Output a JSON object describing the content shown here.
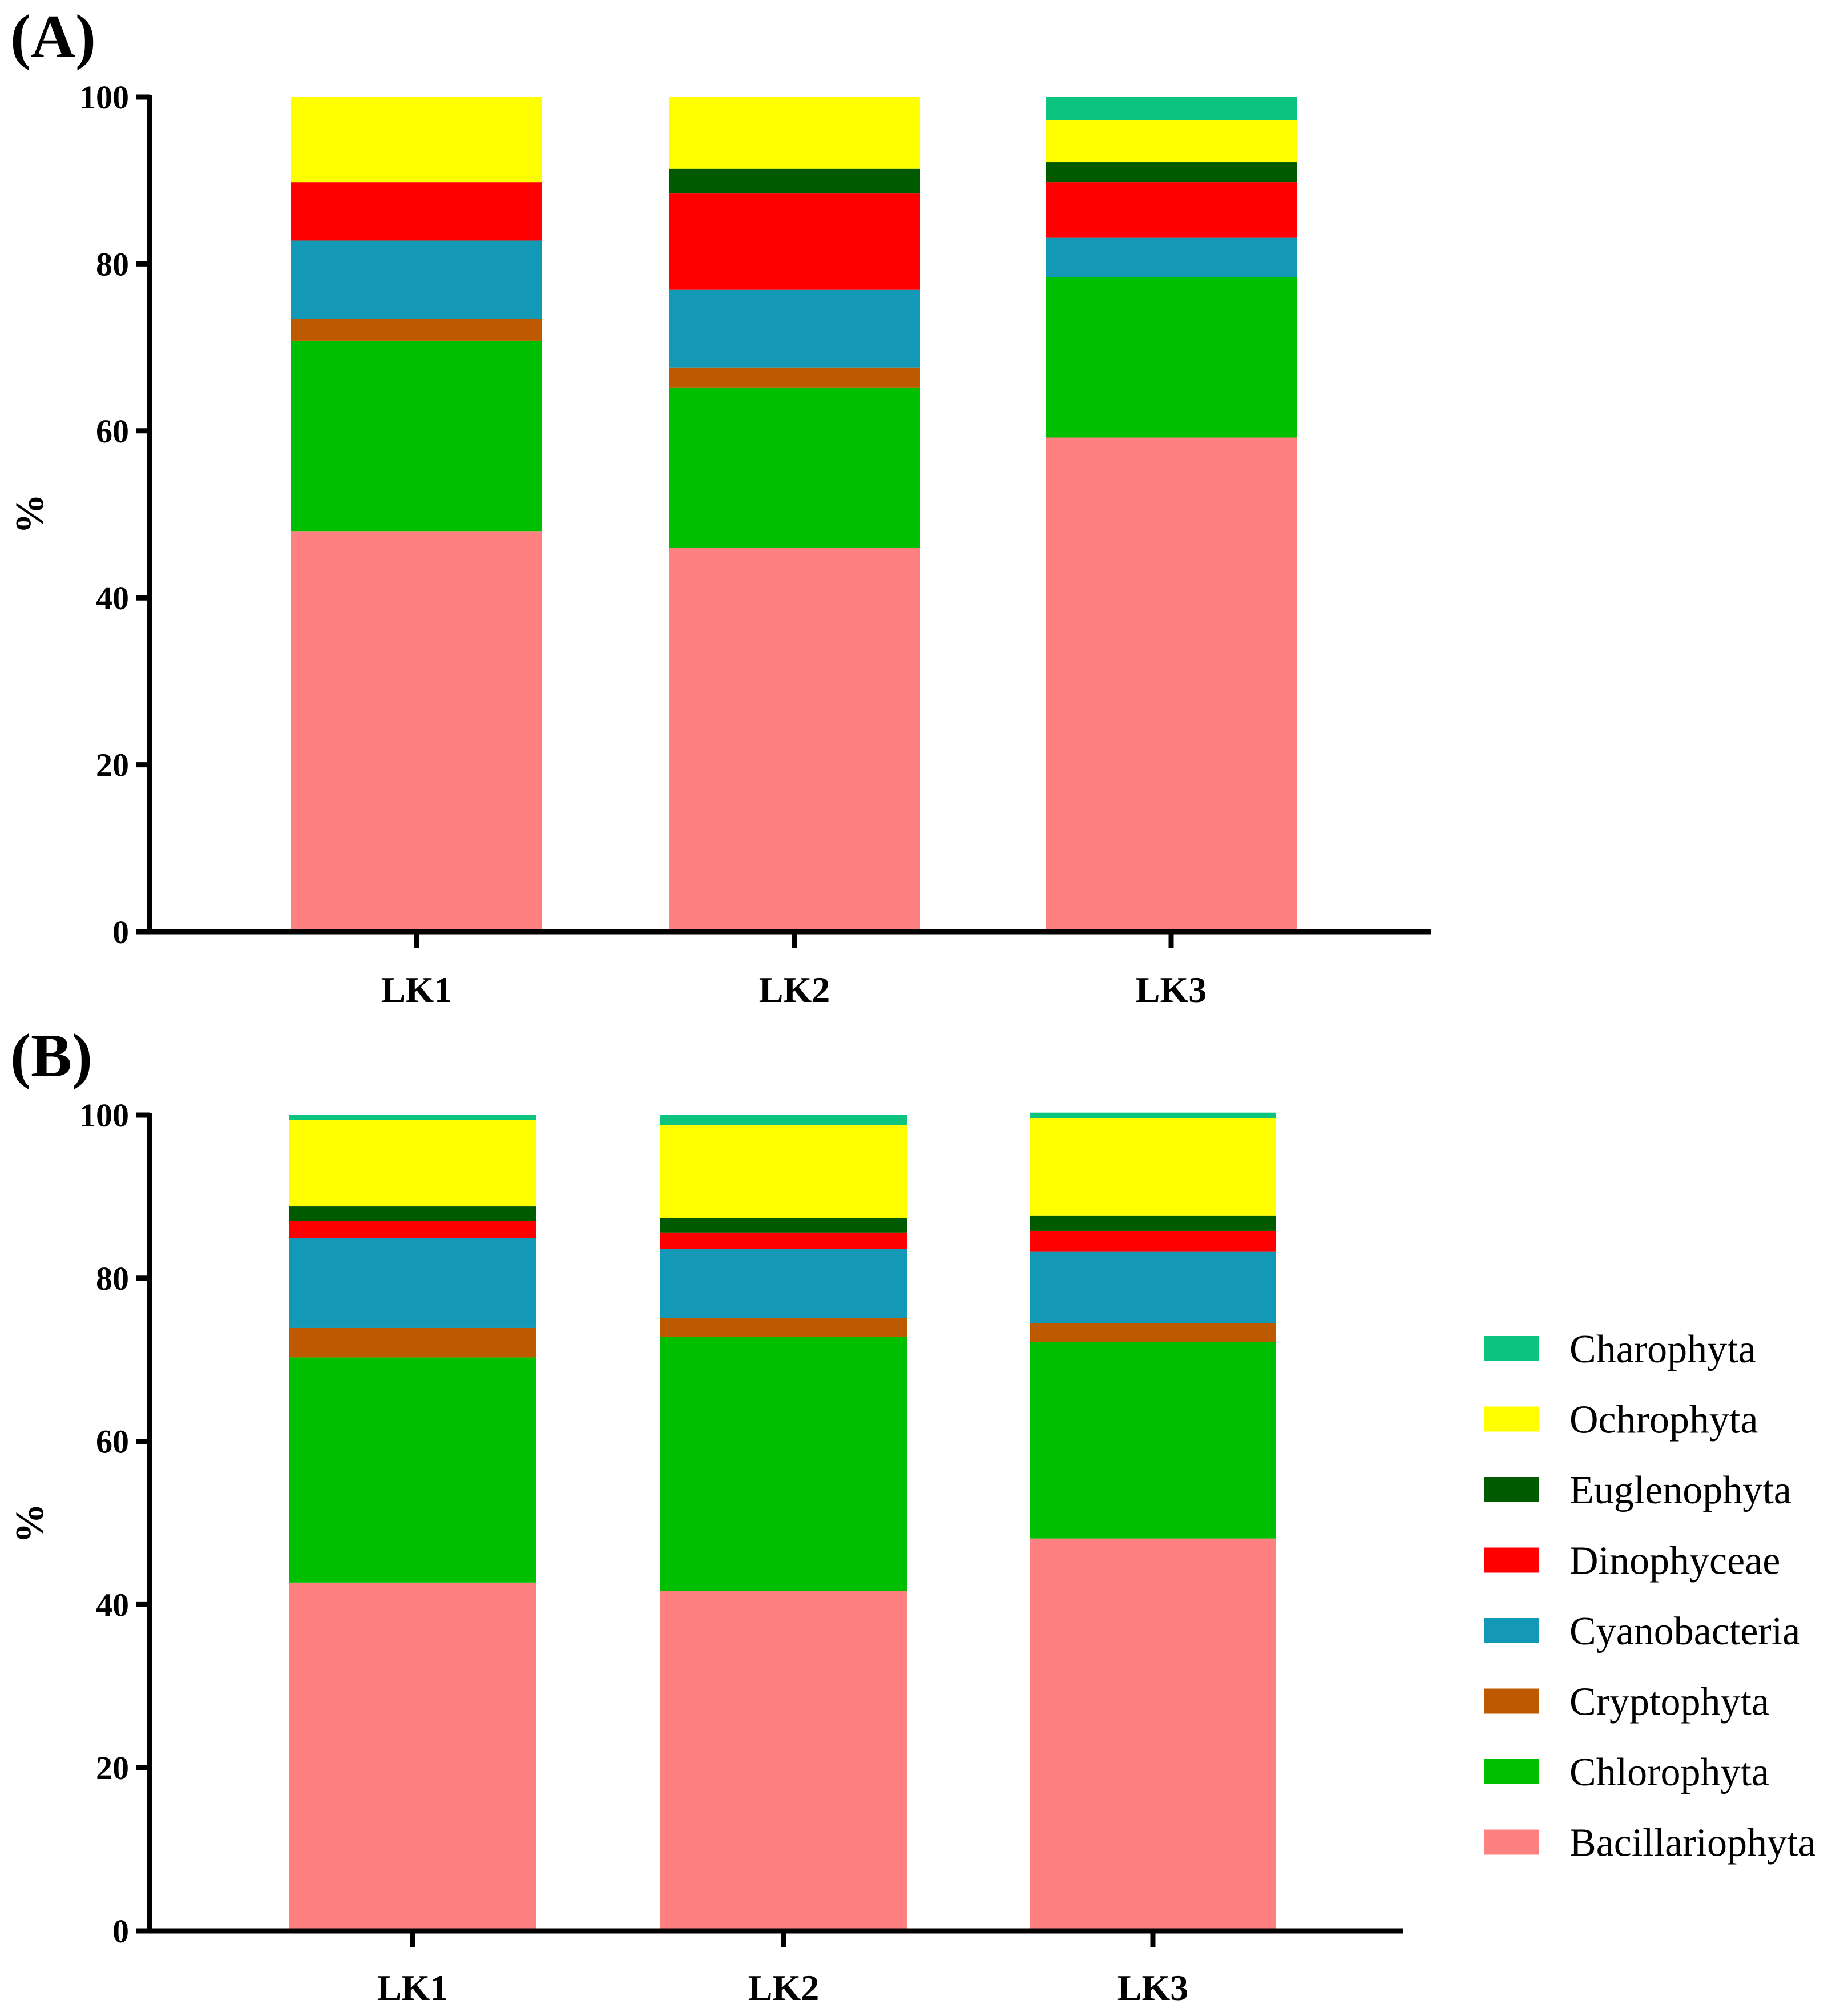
{
  "chart_data": [
    {
      "type": "bar",
      "stacked": true,
      "panel_label": "(A)",
      "categories": [
        "LK1",
        "LK2",
        "LK3"
      ],
      "ylabel": "%",
      "ylim": [
        0,
        100
      ],
      "yticks": [
        "0",
        "20",
        "40",
        "60",
        "80",
        "100"
      ],
      "series": [
        {
          "name": "Bacillariophyta",
          "values": [
            48.0,
            46.0,
            59.2
          ]
        },
        {
          "name": "Chlorophyta",
          "values": [
            22.8,
            19.2,
            19.2
          ]
        },
        {
          "name": "Cryptophyta",
          "values": [
            2.6,
            2.4,
            0.0
          ]
        },
        {
          "name": "Cyanobacteria",
          "values": [
            9.4,
            9.3,
            4.8
          ]
        },
        {
          "name": "Dinophyceae",
          "values": [
            7.0,
            11.6,
            6.6
          ]
        },
        {
          "name": "Euglenophyta",
          "values": [
            0.0,
            2.9,
            2.4
          ]
        },
        {
          "name": "Ochrophyta",
          "values": [
            10.2,
            8.6,
            5.0
          ]
        },
        {
          "name": "Charophyta",
          "values": [
            0.0,
            0.0,
            2.8
          ]
        }
      ]
    },
    {
      "type": "bar",
      "stacked": true,
      "panel_label": "(B)",
      "categories": [
        "LK1",
        "LK2",
        "LK3"
      ],
      "ylabel": "%",
      "ylim": [
        0,
        100
      ],
      "yticks": [
        "0",
        "20",
        "40",
        "60",
        "80",
        "100"
      ],
      "series": [
        {
          "name": "Bacillariophyta",
          "values": [
            42.7,
            41.7,
            48.1
          ]
        },
        {
          "name": "Chlorophyta",
          "values": [
            27.6,
            31.1,
            24.1
          ]
        },
        {
          "name": "Cryptophyta",
          "values": [
            3.6,
            2.3,
            2.3
          ]
        },
        {
          "name": "Cyanobacteria",
          "values": [
            11.0,
            8.5,
            8.8
          ]
        },
        {
          "name": "Dinophyceae",
          "values": [
            2.1,
            2.0,
            2.5
          ]
        },
        {
          "name": "Euglenophyta",
          "values": [
            1.8,
            1.8,
            1.9
          ]
        },
        {
          "name": "Ochrophyta",
          "values": [
            10.6,
            11.4,
            11.9
          ]
        },
        {
          "name": "Charophyta",
          "values": [
            0.6,
            1.2,
            0.7
          ]
        }
      ]
    }
  ],
  "legend": {
    "items": [
      {
        "name": "Charophyta",
        "color": "#0DC47E"
      },
      {
        "name": "Ochrophyta",
        "color": "#FFFF00"
      },
      {
        "name": "Euglenophyta",
        "color": "#005A00"
      },
      {
        "name": "Dinophyceae",
        "color": "#FF0000"
      },
      {
        "name": "Cyanobacteria",
        "color": "#1399B5"
      },
      {
        "name": "Cryptophyta",
        "color": "#BD5A00"
      },
      {
        "name": "Chlorophyta",
        "color": "#00BF00"
      },
      {
        "name": "Bacillariophyta",
        "color": "#FF8080"
      }
    ]
  }
}
